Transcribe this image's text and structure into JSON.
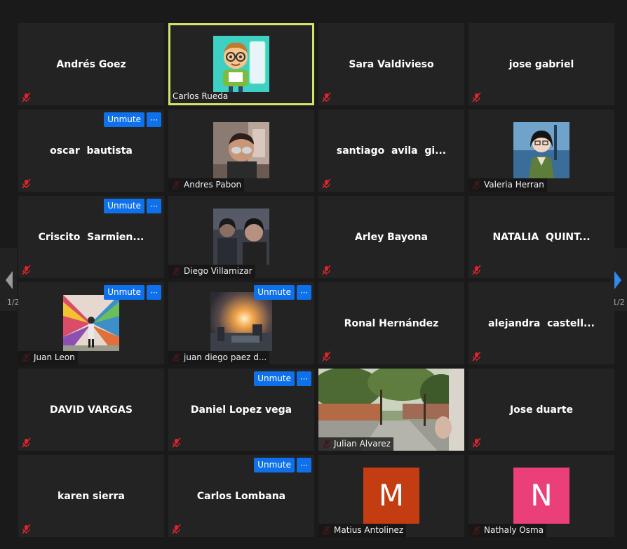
{
  "colors": {
    "background": "#1a1a1a",
    "tile": "#232323",
    "active_border": "#d7e26d",
    "button_blue": "#0e71eb",
    "muted_red": "#e0252a"
  },
  "controls": {
    "unmute_label": "Unmute",
    "more_label": "···"
  },
  "pagination": {
    "left_page": "1/2",
    "right_page": "1/2"
  },
  "participants": [
    {
      "name": "Andrés Goez"
    },
    {
      "name": "Carlos Rueda"
    },
    {
      "name": "Sara Valdivieso"
    },
    {
      "name": "jose gabriel"
    },
    {
      "name": "oscar  bautista"
    },
    {
      "name": "Andres Pabon"
    },
    {
      "name": "santiago  avila  gi..."
    },
    {
      "name": "Valeria Herran"
    },
    {
      "name": "Criscito  Sarmien..."
    },
    {
      "name": "Diego Villamizar"
    },
    {
      "name": "Arley Bayona"
    },
    {
      "name": "NATALIA  QUINT..."
    },
    {
      "name": "Juan Leon"
    },
    {
      "name": "juan diego paez d..."
    },
    {
      "name": "Ronal Hernández"
    },
    {
      "name": "alejandra  castell..."
    },
    {
      "name": "DAVID VARGAS"
    },
    {
      "name": "Daniel Lopez vega"
    },
    {
      "name": "Julian Alvarez"
    },
    {
      "name": "Jose duarte"
    },
    {
      "name": "karen sierra"
    },
    {
      "name": "Carlos Lombana"
    },
    {
      "name": "Matius Antolinez",
      "initial": "M",
      "avatar_color": "#c43d12"
    },
    {
      "name": "Nathaly Osma",
      "initial": "N",
      "avatar_color": "#ea3f79"
    }
  ]
}
